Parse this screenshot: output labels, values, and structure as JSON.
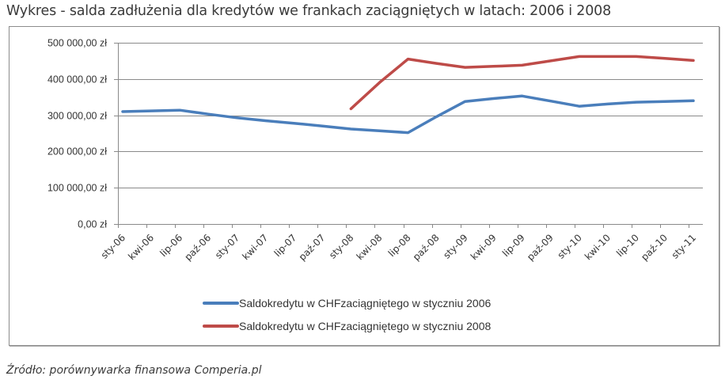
{
  "title": "Wykres - salda zadłużenia dla kredytów we frankach zaciągniętych w latach: 2006 i 2008",
  "source": "Źródło: porównywarka finansowa Comperia.pl",
  "chart_data": {
    "type": "line",
    "title": "Wykres - salda zadłużenia dla kredytów we frankach zaciągniętych w latach: 2006 i 2008",
    "xlabel": "",
    "ylabel": "",
    "ylim": [
      0,
      500000
    ],
    "grid": true,
    "legend_position": "bottom",
    "y_ticks": [
      "0,00 zł",
      "100 000,00 zł",
      "200 000,00 zł",
      "300 000,00 zł",
      "400 000,00 zł",
      "500 000,00 zł"
    ],
    "categories": [
      "sty-06",
      "kwi-06",
      "lip-06",
      "paź-06",
      "sty-07",
      "kwi-07",
      "lip-07",
      "paź-07",
      "sty-08",
      "kwi-08",
      "lip-08",
      "paź-08",
      "sty-09",
      "kwi-09",
      "lip-09",
      "paź-09",
      "sty-10",
      "kwi-10",
      "lip-10",
      "paź-10",
      "sty-11"
    ],
    "series": [
      {
        "name": "Saldokredytu w CHFzaciągniętego w styczniu 2006",
        "color": "#4a7ebb",
        "values": [
          310000,
          312000,
          314000,
          303000,
          293000,
          285000,
          278000,
          270000,
          262000,
          257000,
          252000,
          296000,
          338000,
          346000,
          353000,
          339000,
          325000,
          331000,
          336000,
          338000,
          340000
        ]
      },
      {
        "name": "Saldokredytu w CHFzaciągniętego w styczniu 2008",
        "color": "#be4b48",
        "values": [
          null,
          null,
          null,
          null,
          null,
          null,
          null,
          null,
          318000,
          390000,
          455000,
          443000,
          432000,
          435000,
          438000,
          450000,
          462000,
          462000,
          462000,
          457000,
          451000
        ]
      }
    ]
  }
}
